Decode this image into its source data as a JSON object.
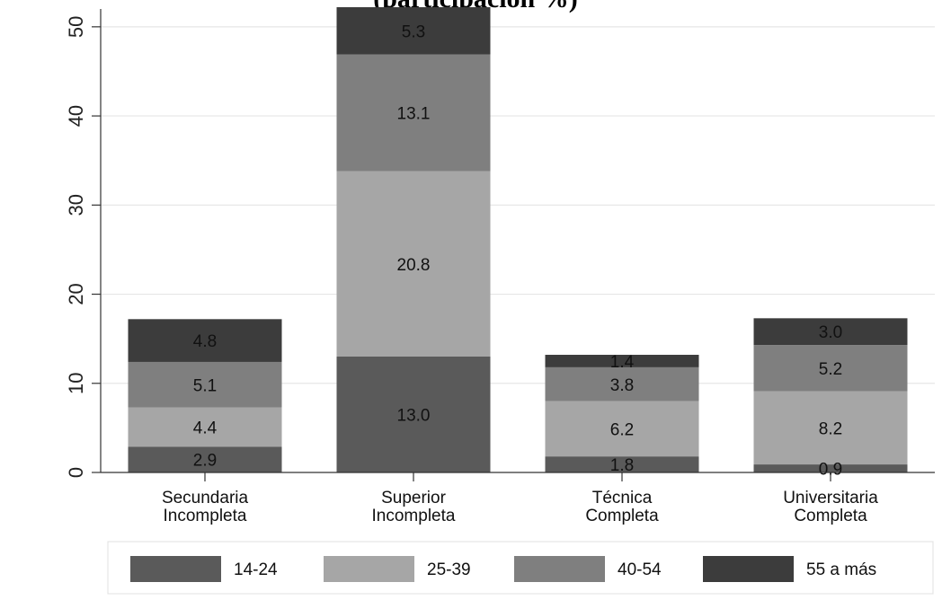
{
  "chart_data": {
    "type": "bar",
    "stacked": true,
    "title": "(participación %)",
    "xlabel": "",
    "ylabel": "",
    "ylim": [
      0,
      52
    ],
    "yticks": [
      "0",
      "10",
      "20",
      "30",
      "40",
      "50"
    ],
    "categories": [
      [
        "Secundaria",
        "Incompleta"
      ],
      [
        "Superior",
        "Incompleta"
      ],
      [
        "Técnica",
        "Completa"
      ],
      [
        "Universitaria",
        "Completa"
      ]
    ],
    "series": [
      {
        "name": "14-24",
        "color": "#5a5a5a",
        "values": [
          2.9,
          13.0,
          1.8,
          0.9
        ],
        "labels": [
          "2.9",
          "13.0",
          "1.8",
          "0.9"
        ]
      },
      {
        "name": "25-39",
        "color": "#a6a6a6",
        "values": [
          4.4,
          20.8,
          6.2,
          8.2
        ],
        "labels": [
          "4.4",
          "20.8",
          "6.2",
          "8.2"
        ]
      },
      {
        "name": "40-54",
        "color": "#7f7f7f",
        "values": [
          5.1,
          13.1,
          3.8,
          5.2
        ],
        "labels": [
          "5.1",
          "13.1",
          "3.8",
          "5.2"
        ]
      },
      {
        "name": "55 a más",
        "color": "#3c3c3c",
        "values": [
          4.8,
          5.3,
          1.4,
          3.0
        ],
        "labels": [
          "4.8",
          "5.3",
          "1.4",
          "3.0"
        ]
      }
    ],
    "grid": true,
    "legend_position": "bottom"
  }
}
